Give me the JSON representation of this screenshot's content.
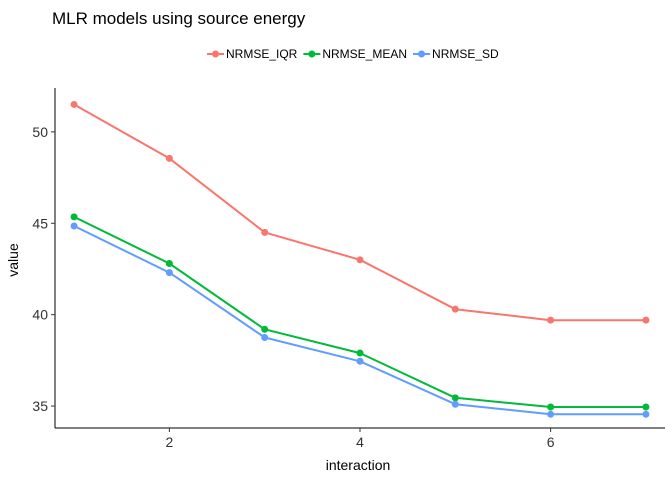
{
  "chart_data": {
    "type": "line",
    "title": "MLR models using source energy",
    "xlabel": "interaction",
    "ylabel": "value",
    "xlim": [
      0.8,
      7.2
    ],
    "ylim": [
      33.8,
      52.4
    ],
    "x_ticks": [
      2,
      4,
      6
    ],
    "y_ticks": [
      35,
      40,
      45,
      50
    ],
    "grid": false,
    "legend_position": "top",
    "x": [
      1,
      2,
      3,
      4,
      5,
      6,
      7
    ],
    "series": [
      {
        "name": "NRMSE_IQR",
        "color": "#F8766D",
        "values": [
          51.5,
          48.55,
          44.5,
          43.0,
          40.3,
          39.7,
          39.7
        ]
      },
      {
        "name": "NRMSE_MEAN",
        "color": "#00BA38",
        "values": [
          45.35,
          42.8,
          39.2,
          37.9,
          35.45,
          34.95,
          34.95
        ]
      },
      {
        "name": "NRMSE_SD",
        "color": "#619CFF",
        "values": [
          44.85,
          42.3,
          38.75,
          37.45,
          35.1,
          34.55,
          34.55
        ]
      }
    ]
  }
}
